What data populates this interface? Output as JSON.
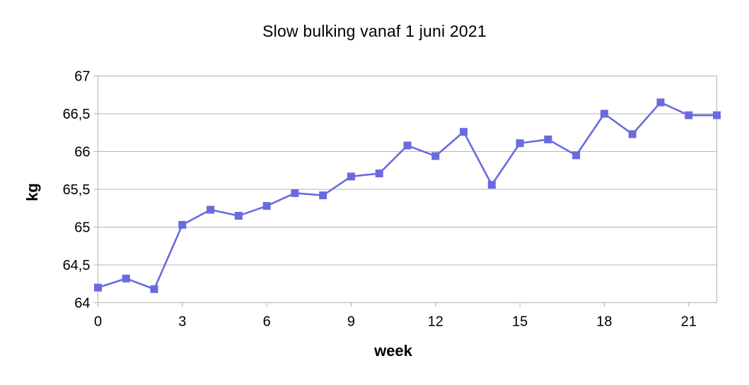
{
  "chart_data": {
    "type": "line",
    "title": "Slow bulking vanaf 1 juni 2021",
    "xlabel": "week",
    "ylabel": "kg",
    "x": [
      0,
      1,
      2,
      3,
      4,
      5,
      6,
      7,
      8,
      9,
      10,
      11,
      12,
      13,
      14,
      15,
      16,
      17,
      18,
      19,
      20,
      21,
      22
    ],
    "values": [
      64.2,
      64.32,
      64.18,
      65.03,
      65.23,
      65.15,
      65.28,
      65.45,
      65.42,
      65.67,
      65.71,
      66.08,
      65.94,
      66.26,
      65.56,
      66.11,
      66.16,
      65.95,
      66.5,
      66.23,
      66.65,
      66.48,
      66.48
    ],
    "xlim": [
      0,
      22
    ],
    "ylim": [
      64,
      67
    ],
    "x_ticks": [
      {
        "value": 0,
        "label": "0"
      },
      {
        "value": 3,
        "label": "3"
      },
      {
        "value": 6,
        "label": "6"
      },
      {
        "value": 9,
        "label": "9"
      },
      {
        "value": 12,
        "label": "12"
      },
      {
        "value": 15,
        "label": "15"
      },
      {
        "value": 18,
        "label": "18"
      },
      {
        "value": 21,
        "label": "21"
      }
    ],
    "y_ticks": [
      {
        "value": 64,
        "label": "64"
      },
      {
        "value": 64.5,
        "label": "64,5"
      },
      {
        "value": 65,
        "label": "65"
      },
      {
        "value": 65.5,
        "label": "65,5"
      },
      {
        "value": 66,
        "label": "66"
      },
      {
        "value": 66.5,
        "label": "66,5"
      },
      {
        "value": 67,
        "label": "67"
      }
    ],
    "grid": "horizontal",
    "legend": false,
    "marker": "square",
    "colors": {
      "series": "#6a6ae0",
      "grid": "#b3b3b3",
      "axis": "#b3b3b3",
      "text": "#000000",
      "background": "#ffffff"
    }
  }
}
